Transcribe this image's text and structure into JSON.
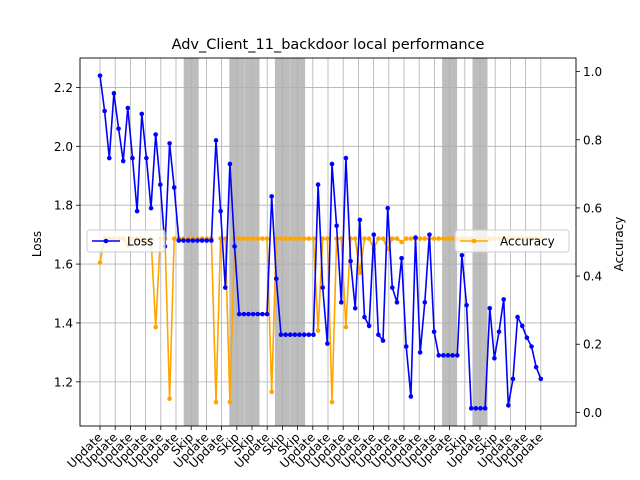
{
  "chart_data": {
    "type": "line",
    "title": "Adv_Client_11_backdoor local performance",
    "xlabel": "",
    "ylabel_left": "Loss",
    "ylabel_right": "Accuracy",
    "grid": true,
    "ylim_left": [
      1.05,
      2.3
    ],
    "ylim_right": [
      -0.04,
      1.04
    ],
    "yticks_left": [
      "1.2",
      "1.4",
      "1.6",
      "1.8",
      "2.0",
      "2.2"
    ],
    "yticks_right": [
      "0.0",
      "0.2",
      "0.4",
      "0.6",
      "0.8",
      "1.0"
    ],
    "x_ticklabels": [
      "Update",
      "Update",
      "Update",
      "Update",
      "Update",
      "Update",
      "Skip",
      "Update",
      "Update",
      "Skip",
      "Skip",
      "Update",
      "Skip",
      "Skip",
      "Update",
      "Update",
      "Update",
      "Update",
      "Update",
      "Update",
      "Update",
      "Update",
      "Update",
      "Update",
      "Skip",
      "Update",
      "Skip",
      "Update",
      "Update",
      "Update"
    ],
    "skip_bands": [
      6,
      9,
      10,
      12,
      13,
      23,
      25
    ],
    "series": [
      {
        "name": "Loss",
        "axis": "left",
        "color": "#0000ff",
        "legend_position": "center-left",
        "values": [
          2.24,
          2.12,
          1.96,
          2.18,
          2.06,
          1.95,
          2.13,
          1.96,
          1.78,
          2.11,
          1.96,
          1.79,
          2.04,
          1.87,
          1.66,
          2.01,
          1.86,
          1.68,
          1.68,
          1.68,
          1.68,
          1.68,
          1.68,
          1.68,
          1.68,
          2.02,
          1.78,
          1.52,
          1.94,
          1.66,
          1.43,
          1.43,
          1.43,
          1.43,
          1.43,
          1.43,
          1.43,
          1.83,
          1.55,
          1.36,
          1.36,
          1.36,
          1.36,
          1.36,
          1.36,
          1.36,
          1.36,
          1.87,
          1.52,
          1.33,
          1.94,
          1.73,
          1.47,
          1.96,
          1.61,
          1.45,
          1.75,
          1.42,
          1.39,
          1.7,
          1.36,
          1.34,
          1.79,
          1.52,
          1.47,
          1.62,
          1.32,
          1.15,
          1.69,
          1.3,
          1.47,
          1.7,
          1.37,
          1.29,
          1.29,
          1.29,
          1.29,
          1.29,
          1.63,
          1.46,
          1.11,
          1.11,
          1.11,
          1.11,
          1.45,
          1.28,
          1.37,
          1.48,
          1.12,
          1.21,
          1.42,
          1.39,
          1.35,
          1.32,
          1.25,
          1.21
        ]
      },
      {
        "name": "Accuracy",
        "axis": "right",
        "color": "#ffa500",
        "legend_position": "center-right",
        "values": [
          0.44,
          0.51,
          0.51,
          0.51,
          0.51,
          0.51,
          0.49,
          0.51,
          0.51,
          0.51,
          0.5,
          0.51,
          0.25,
          0.51,
          0.51,
          0.04,
          0.51,
          0.51,
          0.51,
          0.51,
          0.51,
          0.51,
          0.51,
          0.51,
          0.51,
          0.03,
          0.51,
          0.51,
          0.03,
          0.51,
          0.51,
          0.51,
          0.51,
          0.51,
          0.51,
          0.51,
          0.51,
          0.06,
          0.51,
          0.51,
          0.51,
          0.51,
          0.51,
          0.51,
          0.51,
          0.51,
          0.51,
          0.24,
          0.51,
          0.51,
          0.03,
          0.51,
          0.51,
          0.25,
          0.51,
          0.51,
          0.41,
          0.51,
          0.51,
          0.48,
          0.51,
          0.51,
          0.48,
          0.51,
          0.51,
          0.5,
          0.51,
          0.51,
          0.51,
          0.51,
          0.51,
          0.51,
          0.51,
          0.51,
          0.51,
          0.51,
          0.51,
          0.51,
          0.51,
          0.51,
          0.51,
          0.51,
          0.51,
          0.51,
          0.51,
          0.51,
          0.51,
          0.51,
          0.51,
          0.51,
          0.51,
          0.51,
          0.51,
          0.51,
          0.51,
          0.51
        ]
      }
    ]
  }
}
